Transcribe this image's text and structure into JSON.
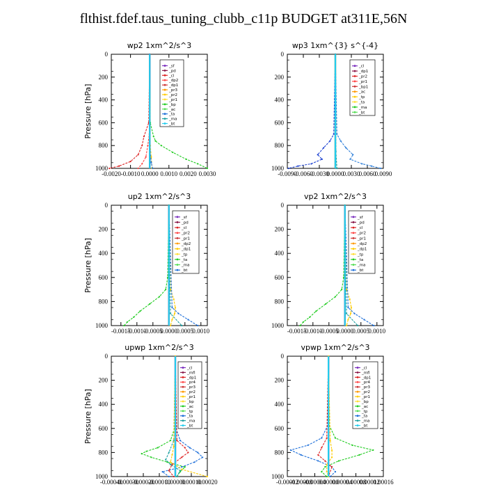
{
  "title": "flthist.fdef.taus_tuning_clubb_c11p  BUDGET at311E,56N",
  "chart_data": [
    {
      "id": "wp2",
      "type": "line",
      "title": "wp2   1xm^2/s^3",
      "ylabel": "Pressure  [hPa]",
      "xlim": [
        -0.002,
        0.003
      ],
      "ylim": [
        1000,
        0
      ],
      "xticks": [
        "-0.0020",
        "-0.0010",
        "0.0000",
        "0.0010",
        "0.0020",
        "0.0030"
      ],
      "xtick_values": [
        -0.002,
        -0.001,
        0,
        0.001,
        0.002,
        0.003
      ],
      "yticks": [
        "0",
        "200",
        "400",
        "600",
        "800",
        "1000"
      ],
      "ytick_values": [
        0,
        200,
        400,
        600,
        800,
        1000
      ],
      "legend": [
        "_sf",
        "_pd",
        "_cl",
        "_dp2",
        "_dp1",
        "_pr3",
        "_pr2",
        "_pr1",
        "_bp",
        "_ac",
        "_ta",
        "_ma",
        "_bt"
      ],
      "series": [
        {
          "name": "_sf",
          "color": "#7b2fbe",
          "y": [
            0,
            1000
          ],
          "x": [
            0,
            0
          ]
        },
        {
          "name": "_pd",
          "color": "#8b1a4a",
          "y": [
            0,
            1000
          ],
          "x": [
            0,
            0
          ]
        },
        {
          "name": "_dp1",
          "color": "#dd2222",
          "y": [
            0,
            600,
            720,
            800,
            880,
            940,
            980,
            1000
          ],
          "x": [
            0,
            -5e-05,
            -0.0003,
            -0.0004,
            -0.0006,
            -0.001,
            -0.0016,
            -0.0021
          ]
        },
        {
          "name": "_dp2",
          "color": "#ff4444",
          "y": [
            0,
            700,
            800,
            900,
            960,
            1000
          ],
          "x": [
            0,
            -2e-05,
            -0.0001,
            -0.0002,
            -0.0004,
            -0.0006
          ]
        },
        {
          "name": "_pr1",
          "color": "#22cc22",
          "y": [
            0,
            600,
            720,
            760,
            800,
            860,
            920,
            960,
            1000
          ],
          "x": [
            0,
            3e-05,
            0.0002,
            0.0003,
            0.0006,
            0.0012,
            0.0019,
            0.0025,
            0.003
          ]
        },
        {
          "name": "_pr2",
          "color": "#ffcc00",
          "y": [
            0,
            800,
            900,
            1000
          ],
          "x": [
            0,
            3e-05,
            8e-05,
            0.00012
          ]
        },
        {
          "name": "_ta",
          "color": "#1e6fd9",
          "y": [
            0,
            850,
            950,
            1000
          ],
          "x": [
            0,
            2e-05,
            8e-05,
            0.00015
          ]
        },
        {
          "name": "_bt",
          "color": "#22ccee",
          "y": [
            0,
            1000
          ],
          "x": [
            0,
            0
          ]
        }
      ]
    },
    {
      "id": "wp3",
      "type": "line",
      "title": "wp3   1xm^{3} s^{-4}",
      "ylabel": "",
      "xlim": [
        -0.009,
        0.009
      ],
      "ylim": [
        1000,
        0
      ],
      "xticks": [
        "-0.0090",
        "-0.0060",
        "-0.0030",
        "0.0000",
        "0.0030",
        "0.0060",
        "0.0090"
      ],
      "xtick_values": [
        -0.009,
        -0.006,
        -0.003,
        0,
        0.003,
        0.006,
        0.009
      ],
      "yticks": [
        "0",
        "200",
        "400",
        "600",
        "800",
        "1000"
      ],
      "ytick_values": [
        0,
        200,
        400,
        600,
        800,
        1000
      ],
      "legend": [
        "_cl",
        "_dp1",
        "_pr2",
        "_pr1",
        "_bp1",
        "_ac",
        "_tp",
        "_ta",
        "_ma",
        "_bt"
      ],
      "series": [
        {
          "name": "_cl",
          "color": "#cc2222",
          "y": [
            0,
            1000
          ],
          "x": [
            0,
            0
          ]
        },
        {
          "name": "_ac",
          "color": "#22cc22",
          "y": [
            0,
            1000
          ],
          "x": [
            0,
            0
          ]
        },
        {
          "name": "_tp",
          "color": "#1a3fd1",
          "y": [
            0,
            700,
            760,
            820,
            880,
            920,
            960,
            980,
            1000
          ],
          "x": [
            0,
            -0.0003,
            -0.001,
            -0.0022,
            -0.0033,
            -0.0025,
            -0.0045,
            -0.007,
            -0.0088
          ]
        },
        {
          "name": "_ta",
          "color": "#2e7fd9",
          "y": [
            0,
            700,
            760,
            820,
            880,
            920,
            960,
            980,
            1000
          ],
          "x": [
            0,
            0.0003,
            0.001,
            0.002,
            0.0033,
            0.0028,
            0.005,
            0.0068,
            0.0085
          ]
        },
        {
          "name": "_ma",
          "color": "#1aa0a0",
          "y": [
            0,
            850,
            1000
          ],
          "x": [
            0,
            0.0001,
            0.0003
          ]
        },
        {
          "name": "_bt",
          "color": "#22ccee",
          "y": [
            0,
            1000
          ],
          "x": [
            0,
            0
          ]
        }
      ]
    },
    {
      "id": "up2",
      "type": "line",
      "title": "up2   1xm^2/s^3",
      "ylabel": "Pressure  [hPa]",
      "xlim": [
        -0.0018,
        0.0012
      ],
      "ylim": [
        1000,
        0
      ],
      "xticks": [
        "-0.0015",
        "-0.0010",
        "-0.0005",
        "0.0000",
        "0.0005",
        "0.0010"
      ],
      "xtick_values": [
        -0.0015,
        -0.001,
        -0.0005,
        0,
        0.0005,
        0.001
      ],
      "yticks": [
        "0",
        "200",
        "400",
        "600",
        "800",
        "1000"
      ],
      "ytick_values": [
        0,
        200,
        400,
        600,
        800,
        1000
      ],
      "legend": [
        "_sf",
        "_pd",
        "_cl",
        "_pr2",
        "_pr1",
        "_dp2",
        "_dp1",
        "_tp",
        "_ta",
        "_ma",
        "_bt"
      ],
      "series": [
        {
          "name": "_sf",
          "color": "#7b2fbe",
          "y": [
            0,
            1000
          ],
          "x": [
            0,
            0
          ]
        },
        {
          "name": "_pd",
          "color": "#aa1a2a",
          "y": [
            0,
            1000
          ],
          "x": [
            0,
            0
          ]
        },
        {
          "name": "_dp1",
          "color": "#22cc22",
          "y": [
            0,
            600,
            700,
            760,
            820,
            880,
            930,
            970,
            1000
          ],
          "x": [
            0,
            -4e-05,
            -0.0001,
            -0.0003,
            -0.0006,
            -0.0009,
            -0.0011,
            -0.0013,
            -0.0014
          ]
        },
        {
          "name": "_pr2",
          "color": "#ffcc00",
          "y": [
            0,
            700,
            780,
            850,
            900,
            950,
            1000
          ],
          "x": [
            0,
            5e-05,
            0.00015,
            0.0002,
            0.00018,
            0.0001,
            5e-05
          ]
        },
        {
          "name": "_ta",
          "color": "#1e6fd9",
          "y": [
            0,
            850,
            900,
            950,
            1000
          ],
          "x": [
            0,
            0.0001,
            0.0003,
            0.0006,
            0.0009
          ]
        },
        {
          "name": "_ma",
          "color": "#1aa0a0",
          "y": [
            0,
            900,
            1000
          ],
          "x": [
            0,
            5e-05,
            0.0004
          ]
        },
        {
          "name": "_bt",
          "color": "#22ccee",
          "y": [
            0,
            1000
          ],
          "x": [
            0,
            0
          ]
        }
      ]
    },
    {
      "id": "vp2",
      "type": "line",
      "title": "vp2   1xm^2/s^3",
      "ylabel": "",
      "xlim": [
        -0.0018,
        0.0012
      ],
      "ylim": [
        1000,
        0
      ],
      "xticks": [
        "-0.0015",
        "-0.0010",
        "-0.0005",
        "0.0000",
        "0.0005",
        "0.0010"
      ],
      "xtick_values": [
        -0.0015,
        -0.001,
        -0.0005,
        0,
        0.0005,
        0.001
      ],
      "yticks": [
        "0",
        "200",
        "400",
        "600",
        "800",
        "1000"
      ],
      "ytick_values": [
        0,
        200,
        400,
        600,
        800,
        1000
      ],
      "legend": [
        "_sf",
        "_pd",
        "_cl",
        "_pr2",
        "_pr1",
        "_dp2",
        "_dp1",
        "_tp",
        "_ta",
        "_ma",
        "_bt"
      ],
      "series": [
        {
          "name": "_sf",
          "color": "#7b2fbe",
          "y": [
            0,
            1000
          ],
          "x": [
            0,
            0
          ]
        },
        {
          "name": "_pd",
          "color": "#aa1a2a",
          "y": [
            0,
            1000
          ],
          "x": [
            0,
            0
          ]
        },
        {
          "name": "_dp1",
          "color": "#22cc22",
          "y": [
            0,
            600,
            700,
            760,
            820,
            880,
            930,
            970,
            1000
          ],
          "x": [
            0,
            -4e-05,
            -0.0001,
            -0.0003,
            -0.0006,
            -0.0009,
            -0.0011,
            -0.0013,
            -0.0014
          ]
        },
        {
          "name": "_pr2",
          "color": "#ffcc00",
          "y": [
            0,
            700,
            780,
            850,
            900,
            950,
            1000
          ],
          "x": [
            0,
            5e-05,
            0.00015,
            0.0002,
            0.00018,
            0.0001,
            5e-05
          ]
        },
        {
          "name": "_ta",
          "color": "#1e6fd9",
          "y": [
            0,
            850,
            900,
            950,
            1000
          ],
          "x": [
            0,
            0.0001,
            0.0003,
            0.0006,
            0.0009
          ]
        },
        {
          "name": "_ma",
          "color": "#1aa0a0",
          "y": [
            0,
            900,
            1000
          ],
          "x": [
            0,
            5e-05,
            0.0004
          ]
        },
        {
          "name": "_bt",
          "color": "#22ccee",
          "y": [
            0,
            1000
          ],
          "x": [
            0,
            0
          ]
        }
      ]
    },
    {
      "id": "upwp",
      "type": "line",
      "title": "upwp   1xm^2/s^3",
      "ylabel": "Pressure  [hPa]",
      "xlim": [
        -0.0004,
        0.0002
      ],
      "ylim": [
        1000,
        0
      ],
      "xticks": [
        "-0.00040",
        "-0.00030",
        "-0.00020",
        "-0.00010",
        "0.00000",
        "0.00010",
        "0.00020"
      ],
      "xtick_values": [
        -0.0004,
        -0.0003,
        -0.0002,
        -0.0001,
        0,
        0.0001,
        0.0002
      ],
      "yticks": [
        "0",
        "200",
        "400",
        "600",
        "800",
        "1000"
      ],
      "ytick_values": [
        0,
        200,
        400,
        600,
        800,
        1000
      ],
      "legend": [
        "_cl",
        "_mfl",
        "_dp1",
        "_pr4",
        "_pr3",
        "_pr2",
        "_pr1",
        "_bp",
        "_ac",
        "_tp",
        "_ta",
        "_ma",
        "_bt"
      ],
      "series": [
        {
          "name": "_cl",
          "color": "#7b2fbe",
          "y": [
            0,
            1000
          ],
          "x": [
            0,
            0
          ]
        },
        {
          "name": "_mfl",
          "color": "#8b1a4a",
          "y": [
            0,
            1000
          ],
          "x": [
            0,
            0
          ]
        },
        {
          "name": "_bp",
          "color": "#22cc22",
          "y": [
            0,
            600,
            700,
            760,
            790,
            810,
            840,
            880,
            920,
            960,
            1000
          ],
          "x": [
            0,
            -5e-06,
            -3e-05,
            -0.00011,
            -0.00018,
            -0.00021,
            -0.00015,
            -5e-05,
            6e-05,
            3e-05,
            1e-05
          ]
        },
        {
          "name": "_tp",
          "color": "#1e6fd9",
          "y": [
            0,
            600,
            700,
            760,
            800,
            840,
            880,
            920,
            960,
            1000
          ],
          "x": [
            0,
            5e-06,
            3e-05,
            9e-05,
            0.00014,
            0.00017,
            0.00012,
            4e-05,
            -8e-05,
            -4e-05
          ]
        },
        {
          "name": "_ta",
          "color": "#1aa0a0",
          "y": [
            0,
            700,
            800,
            860,
            900,
            950,
            1000
          ],
          "x": [
            0,
            -1e-05,
            -4e-05,
            -6e-05,
            -3e-05,
            3e-05,
            1e-05
          ]
        },
        {
          "name": "_dp1",
          "color": "#dd2222",
          "y": [
            0,
            700,
            760,
            800,
            840,
            900,
            950,
            1000
          ],
          "x": [
            0,
            1e-05,
            6e-05,
            8e-05,
            4e-05,
            -2e-05,
            -4e-05,
            -1e-05
          ]
        },
        {
          "name": "_pr2",
          "color": "#ffcc00",
          "y": [
            0,
            750,
            820,
            880,
            940,
            1000
          ],
          "x": [
            0,
            -1e-05,
            -2e-05,
            -3e-05,
            4e-05,
            0.0002
          ]
        },
        {
          "name": "_bt",
          "color": "#22ccee",
          "y": [
            0,
            1000
          ],
          "x": [
            0,
            0
          ]
        }
      ]
    },
    {
      "id": "vpwp",
      "type": "line",
      "title": "vpwp   1xm^2/s^3",
      "ylabel": "",
      "xlim": [
        -0.00012,
        0.00016
      ],
      "ylim": [
        1000,
        0
      ],
      "xticks": [
        "-0.00012",
        "-0.00008",
        "-0.00004",
        "0.00000",
        "0.00004",
        "0.00008",
        "0.00012",
        "0.00016"
      ],
      "xtick_values": [
        -0.00012,
        -8e-05,
        -4e-05,
        0,
        4e-05,
        8e-05,
        0.00012,
        0.00016
      ],
      "yticks": [
        "0",
        "200",
        "400",
        "600",
        "800",
        "1000"
      ],
      "ytick_values": [
        0,
        200,
        400,
        600,
        800,
        1000
      ],
      "legend": [
        "_cl",
        "_mfl",
        "_dp1",
        "_pr4",
        "_pr3",
        "_pr2",
        "_pr1",
        "_bp",
        "_ac",
        "_tp",
        "_ta",
        "_ma",
        "_bt"
      ],
      "series": [
        {
          "name": "_cl",
          "color": "#7b2fbe",
          "y": [
            0,
            1000
          ],
          "x": [
            0,
            0
          ]
        },
        {
          "name": "_mfl",
          "color": "#8b1a4a",
          "y": [
            0,
            1000
          ],
          "x": [
            0,
            0
          ]
        },
        {
          "name": "_bp",
          "color": "#22cc22",
          "y": [
            0,
            580,
            680,
            740,
            780,
            820,
            870,
            920,
            960,
            1000
          ],
          "x": [
            0,
            3e-06,
            2e-05,
            7e-05,
            0.00013,
            9e-05,
            3e-05,
            -1e-05,
            -2e-05,
            -5e-06
          ]
        },
        {
          "name": "_tp",
          "color": "#1e6fd9",
          "y": [
            0,
            580,
            680,
            740,
            780,
            820,
            870,
            920,
            960,
            1000
          ],
          "x": [
            0,
            -3e-06,
            -2e-05,
            -6e-05,
            -0.00011,
            -8e-05,
            -3e-05,
            1e-05,
            2e-05,
            5e-06
          ]
        },
        {
          "name": "_dp1",
          "color": "#dd2222",
          "y": [
            0,
            680,
            760,
            820,
            870,
            920,
            1000
          ],
          "x": [
            0,
            -5e-06,
            -2e-05,
            -3e-05,
            -1e-05,
            1e-05,
            0
          ]
        },
        {
          "name": "_pr2",
          "color": "#ffcc00",
          "y": [
            0,
            700,
            780,
            840,
            900,
            960,
            1000
          ],
          "x": [
            0,
            5e-06,
            1e-05,
            1e-05,
            -5e-06,
            -5e-06,
            0
          ]
        },
        {
          "name": "_bt",
          "color": "#22ccee",
          "y": [
            0,
            1000
          ],
          "x": [
            0,
            0
          ]
        }
      ]
    }
  ]
}
